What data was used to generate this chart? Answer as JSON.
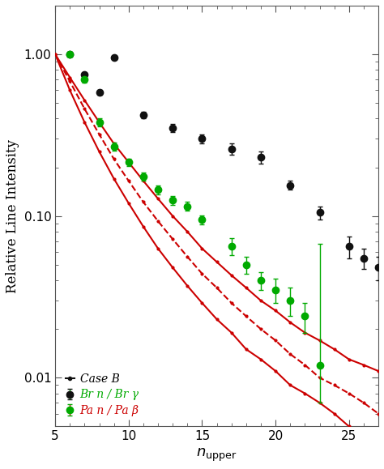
{
  "title": "",
  "xlabel": "n_upper",
  "ylabel": "Relative Line Intensity",
  "xlim": [
    5,
    27
  ],
  "ylim": [
    0.005,
    2.0
  ],
  "background_color": "#ffffff",
  "legend_entries": [
    "Br n / Br γ",
    "Pa n / Pa β",
    "Case B"
  ],
  "legend_colors": [
    "#000000",
    "#00aa00",
    "#cc0000"
  ],
  "br_x": [
    6,
    7,
    8,
    9,
    11,
    13,
    15,
    17,
    19,
    21,
    23,
    25,
    26,
    27
  ],
  "br_y": [
    1.0,
    0.75,
    0.58,
    0.95,
    0.42,
    0.35,
    0.3,
    0.26,
    0.23,
    0.155,
    0.105,
    0.065,
    0.055,
    0.048
  ],
  "br_yerr_low": [
    0.02,
    0.02,
    0.02,
    0.02,
    0.02,
    0.02,
    0.02,
    0.02,
    0.02,
    0.01,
    0.01,
    0.01,
    0.008,
    0.008
  ],
  "br_yerr_high": [
    0.02,
    0.02,
    0.02,
    0.02,
    0.02,
    0.02,
    0.02,
    0.02,
    0.02,
    0.01,
    0.01,
    0.01,
    0.008,
    0.008
  ],
  "pa_x": [
    6,
    7,
    8,
    9,
    10,
    11,
    12,
    13,
    14,
    15,
    17,
    18,
    19,
    20,
    21,
    22,
    23
  ],
  "pa_y": [
    1.0,
    0.7,
    0.38,
    0.27,
    0.215,
    0.175,
    0.145,
    0.125,
    0.115,
    0.095,
    0.065,
    0.05,
    0.04,
    0.035,
    0.03,
    0.024,
    0.012
  ],
  "pa_yerr_low": [
    0.03,
    0.03,
    0.02,
    0.015,
    0.012,
    0.01,
    0.009,
    0.008,
    0.007,
    0.006,
    0.008,
    0.006,
    0.005,
    0.006,
    0.006,
    0.005,
    0.005
  ],
  "pa_yerr_high": [
    0.03,
    0.03,
    0.02,
    0.015,
    0.012,
    0.01,
    0.009,
    0.008,
    0.007,
    0.006,
    0.008,
    0.006,
    0.005,
    0.006,
    0.006,
    0.005,
    0.055
  ],
  "case_b_upper_x": [
    5,
    6,
    7,
    8,
    9,
    10,
    11,
    12,
    13,
    14,
    15,
    16,
    17,
    18,
    19,
    20,
    21,
    22,
    23,
    24,
    25,
    26,
    27
  ],
  "case_b_upper_y": [
    1.0,
    0.72,
    0.52,
    0.38,
    0.28,
    0.215,
    0.165,
    0.128,
    0.1,
    0.08,
    0.063,
    0.052,
    0.043,
    0.036,
    0.03,
    0.026,
    0.022,
    0.019,
    0.017,
    0.015,
    0.013,
    0.012,
    0.011
  ],
  "case_b_middle_x": [
    5,
    6,
    7,
    8,
    9,
    10,
    11,
    12,
    13,
    14,
    15,
    16,
    17,
    18,
    19,
    20,
    21,
    22,
    23,
    24,
    25,
    26,
    27
  ],
  "case_b_middle_y": [
    1.0,
    0.68,
    0.46,
    0.32,
    0.225,
    0.165,
    0.122,
    0.093,
    0.072,
    0.056,
    0.044,
    0.036,
    0.029,
    0.024,
    0.02,
    0.017,
    0.014,
    0.012,
    0.01,
    0.009,
    0.008,
    0.007,
    0.006
  ],
  "case_b_lower_x": [
    5,
    6,
    7,
    8,
    9,
    10,
    11,
    12,
    13,
    14,
    15,
    16,
    17,
    18,
    19,
    20,
    21,
    22,
    23,
    24,
    25,
    26,
    27
  ],
  "case_b_lower_y": [
    1.0,
    0.6,
    0.38,
    0.25,
    0.17,
    0.12,
    0.086,
    0.063,
    0.048,
    0.037,
    0.029,
    0.023,
    0.019,
    0.015,
    0.013,
    0.011,
    0.009,
    0.008,
    0.007,
    0.006,
    0.005,
    0.0045,
    0.004
  ],
  "line_color": "#cc0000",
  "br_color": "#111111",
  "pa_color": "#00aa00",
  "marker_size": 6,
  "errorbar_capsize": 2,
  "tick_color": "#555555",
  "spine_color": "#555555"
}
